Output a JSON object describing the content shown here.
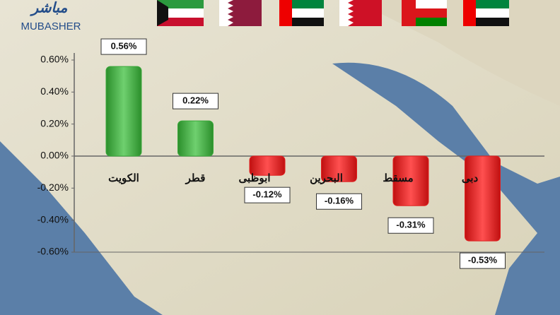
{
  "logo_arabic": "مباشر",
  "logo": "MUBASHER",
  "chart_data": {
    "type": "bar",
    "categories": [
      "الكويت",
      "قطر",
      "ابوظبى",
      "البحرين",
      "مسقط",
      "دبى"
    ],
    "values": [
      0.56,
      0.22,
      -0.12,
      -0.16,
      -0.31,
      -0.53
    ],
    "value_labels": [
      "0.56%",
      "0.22%",
      "-0.12%",
      "-0.16%",
      "-0.31%",
      "-0.53%"
    ],
    "colors": [
      "#3aa83a",
      "#3aa83a",
      "#e02020",
      "#e02020",
      "#e02020",
      "#e02020"
    ],
    "ylim": [
      -0.6,
      0.6
    ],
    "yticks": [
      {
        "value": 0.6,
        "label": "0.60%"
      },
      {
        "value": 0.4,
        "label": "0.40%"
      },
      {
        "value": 0.2,
        "label": "0.20%"
      },
      {
        "value": 0,
        "label": "0.00%"
      },
      {
        "value": -0.2,
        "label": "-0.20%"
      },
      {
        "value": -0.4,
        "label": "-0.40%"
      },
      {
        "value": -0.6,
        "label": "-0.60%"
      }
    ],
    "grid": false
  }
}
